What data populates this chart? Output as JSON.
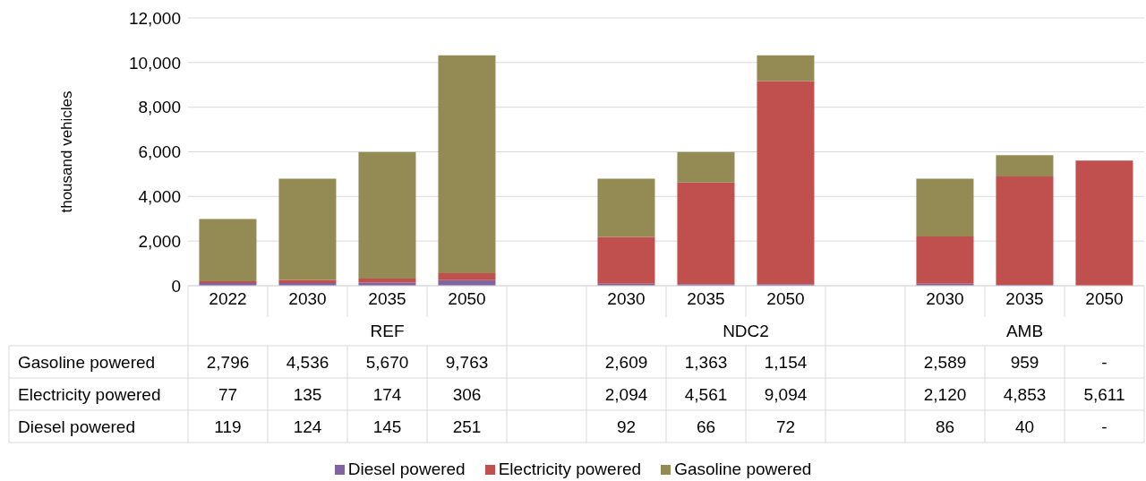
{
  "chart_data": {
    "type": "bar",
    "stacked": true,
    "ylabel": "thousand vehicles",
    "categories": [
      "2022",
      "2030",
      "2035",
      "2050",
      null,
      "2030",
      "2035",
      "2050",
      null,
      "2030",
      "2035",
      "2050"
    ],
    "annotations": [
      "REF",
      "NDC2",
      "AMB"
    ],
    "series": [
      {
        "name": "Diesel powered",
        "color": "#8064a2",
        "values": [
          119,
          124,
          145,
          251,
          null,
          92,
          66,
          72,
          null,
          86,
          40,
          null
        ],
        "value_labels": [
          "119",
          "124",
          "145",
          "251",
          null,
          "92",
          "66",
          "72",
          null,
          "86",
          "40",
          "-"
        ]
      },
      {
        "name": "Electricity powered",
        "color": "#c0504d",
        "values": [
          77,
          135,
          174,
          306,
          null,
          2094,
          4561,
          9094,
          null,
          2120,
          4853,
          5611
        ],
        "value_labels": [
          "77",
          "135",
          "174",
          "306",
          null,
          "2,094",
          "4,561",
          "9,094",
          null,
          "2,120",
          "4,853",
          "5,611"
        ]
      },
      {
        "name": "Gasoline powered",
        "color": "#948a54",
        "values": [
          2796,
          4536,
          5670,
          9763,
          null,
          2609,
          1363,
          1154,
          null,
          2589,
          959,
          null
        ],
        "value_labels": [
          "2,796",
          "4,536",
          "5,670",
          "9,763",
          null,
          "2,609",
          "1,363",
          "1,154",
          null,
          "2,589",
          "959",
          "-"
        ]
      }
    ],
    "ylim": [
      0,
      12000
    ],
    "yticks": [
      0,
      {
        "value": 2000,
        "label": "2,000"
      },
      {
        "value": 4000,
        "label": "4,000"
      },
      {
        "value": 6000,
        "label": "6,000"
      },
      {
        "value": 8000,
        "label": "8,000"
      },
      {
        "value": 10000,
        "label": "10,000"
      },
      {
        "value": 12000,
        "label": "12,000"
      }
    ],
    "grid": "y",
    "legend": "bottom"
  }
}
